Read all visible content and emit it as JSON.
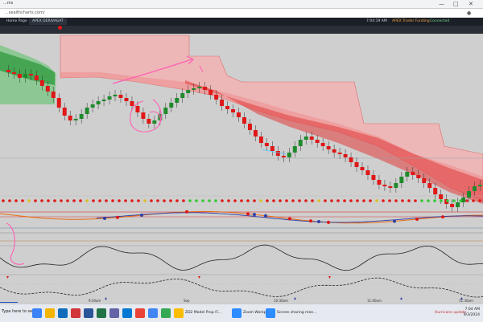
{
  "browser": {
    "tab_title": "...ms",
    "url": "...sealthcharts.com/"
  },
  "app": {
    "tabs": [
      {
        "label": "Home Page"
      },
      {
        "label": "APEX DERIVAGAT"
      }
    ],
    "status_time": "7:04:19 AM",
    "status_items": [
      "APEX Trader Funding",
      "Connected"
    ]
  },
  "chart_labels": {
    "times": [
      "9:30am",
      "Sep",
      "10:30am",
      "11:00am",
      "11:30am"
    ]
  },
  "taskbar": {
    "search_text": "Type here to search",
    "items": [
      {
        "label": "ZD2 Model Prop Fi...",
        "icon": "chrome-icon"
      },
      {
        "label": "Zoom Workplace",
        "icon": "zoom-icon"
      },
      {
        "label": "Screen sharing mee...",
        "icon": "screen-share-icon"
      }
    ],
    "notification": "Hurricane update",
    "clock_time": "7:04 AM",
    "clock_date": "9/3/2024"
  },
  "colors": {
    "bull": "#1f8a2c",
    "bear": "#e01717",
    "band_red": "#f08a8a",
    "band_green": "#6fc27a",
    "background": "#cfcfcf"
  }
}
